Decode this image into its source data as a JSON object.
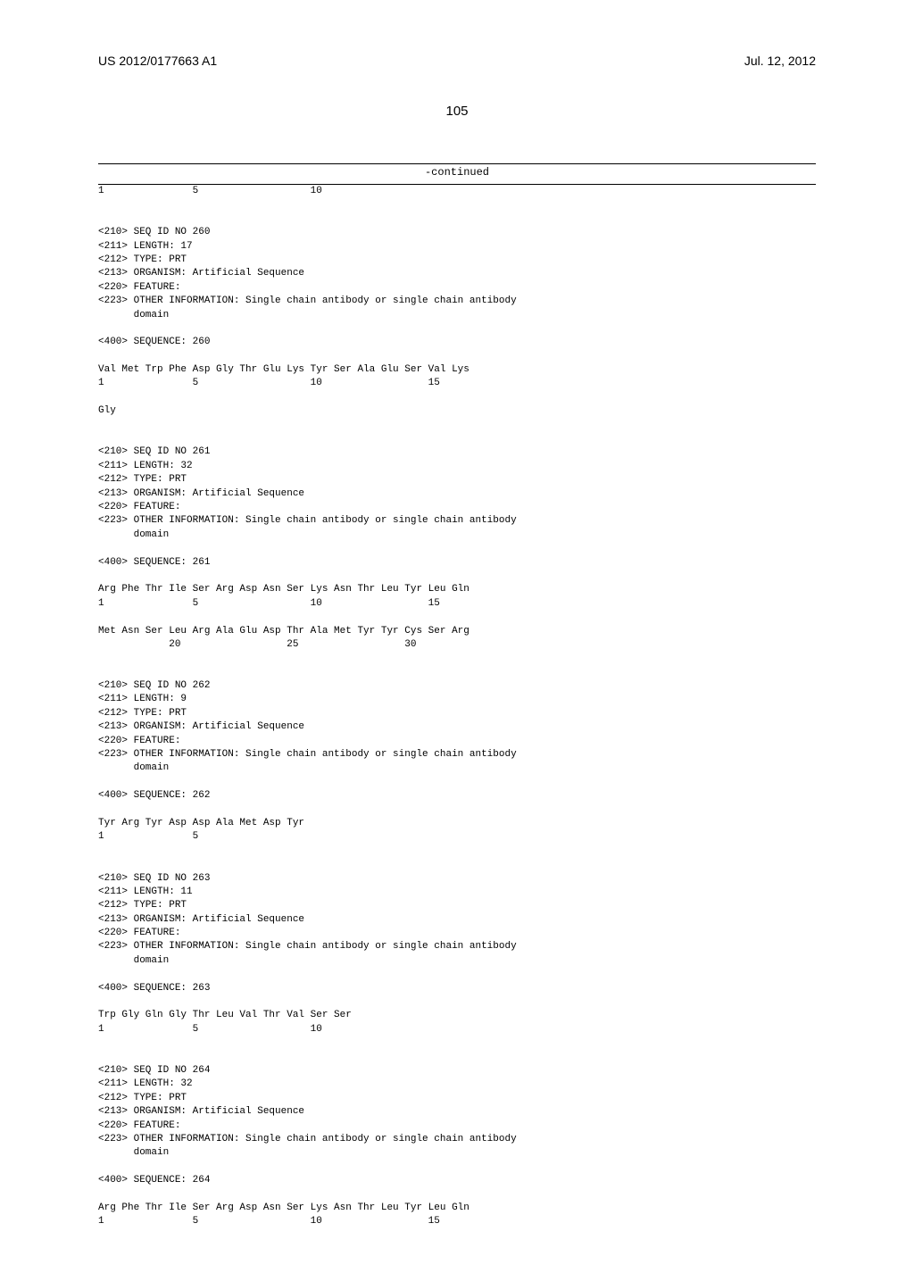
{
  "header": {
    "pub_number": "US 2012/0177663 A1",
    "pub_date": "Jul. 12, 2012"
  },
  "page_number": "105",
  "continued_label": "-continued",
  "sequences": "1               5                   10\n\n\n<210> SEQ ID NO 260\n<211> LENGTH: 17\n<212> TYPE: PRT\n<213> ORGANISM: Artificial Sequence\n<220> FEATURE:\n<223> OTHER INFORMATION: Single chain antibody or single chain antibody\n      domain\n\n<400> SEQUENCE: 260\n\nVal Met Trp Phe Asp Gly Thr Glu Lys Tyr Ser Ala Glu Ser Val Lys\n1               5                   10                  15\n\nGly\n\n\n<210> SEQ ID NO 261\n<211> LENGTH: 32\n<212> TYPE: PRT\n<213> ORGANISM: Artificial Sequence\n<220> FEATURE:\n<223> OTHER INFORMATION: Single chain antibody or single chain antibody\n      domain\n\n<400> SEQUENCE: 261\n\nArg Phe Thr Ile Ser Arg Asp Asn Ser Lys Asn Thr Leu Tyr Leu Gln\n1               5                   10                  15\n\nMet Asn Ser Leu Arg Ala Glu Asp Thr Ala Met Tyr Tyr Cys Ser Arg\n            20                  25                  30\n\n\n<210> SEQ ID NO 262\n<211> LENGTH: 9\n<212> TYPE: PRT\n<213> ORGANISM: Artificial Sequence\n<220> FEATURE:\n<223> OTHER INFORMATION: Single chain antibody or single chain antibody\n      domain\n\n<400> SEQUENCE: 262\n\nTyr Arg Tyr Asp Asp Ala Met Asp Tyr\n1               5\n\n\n<210> SEQ ID NO 263\n<211> LENGTH: 11\n<212> TYPE: PRT\n<213> ORGANISM: Artificial Sequence\n<220> FEATURE:\n<223> OTHER INFORMATION: Single chain antibody or single chain antibody\n      domain\n\n<400> SEQUENCE: 263\n\nTrp Gly Gln Gly Thr Leu Val Thr Val Ser Ser\n1               5                   10\n\n\n<210> SEQ ID NO 264\n<211> LENGTH: 32\n<212> TYPE: PRT\n<213> ORGANISM: Artificial Sequence\n<220> FEATURE:\n<223> OTHER INFORMATION: Single chain antibody or single chain antibody\n      domain\n\n<400> SEQUENCE: 264\n\nArg Phe Thr Ile Ser Arg Asp Asn Ser Lys Asn Thr Leu Tyr Leu Gln\n1               5                   10                  15"
}
